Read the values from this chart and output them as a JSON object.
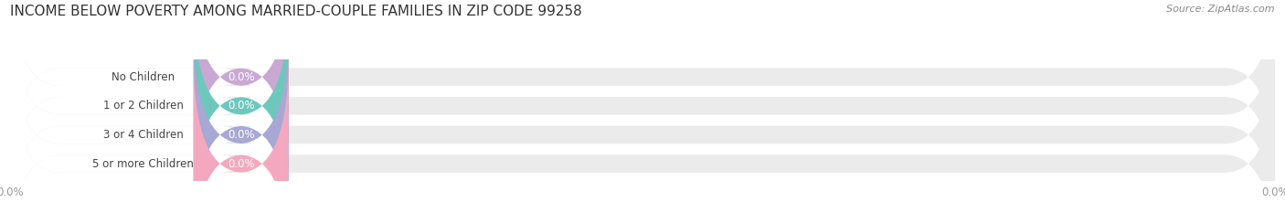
{
  "title": "INCOME BELOW POVERTY AMONG MARRIED-COUPLE FAMILIES IN ZIP CODE 99258",
  "source_text": "Source: ZipAtlas.com",
  "categories": [
    "No Children",
    "1 or 2 Children",
    "3 or 4 Children",
    "5 or more Children"
  ],
  "values": [
    0.0,
    0.0,
    0.0,
    0.0
  ],
  "bar_colors": [
    "#c9a8d4",
    "#6dc8bc",
    "#a8a8d4",
    "#f4a8c0"
  ],
  "bar_bg_color": "#ebebeb",
  "bar_white_color": "#ffffff",
  "background_color": "#ffffff",
  "label_fontsize": 8.5,
  "value_fontsize": 8.5,
  "title_fontsize": 11,
  "source_fontsize": 8,
  "value_label_color": "#ffffff",
  "category_label_color": "#444444",
  "tick_color": "#999999",
  "grid_color": "#cccccc"
}
